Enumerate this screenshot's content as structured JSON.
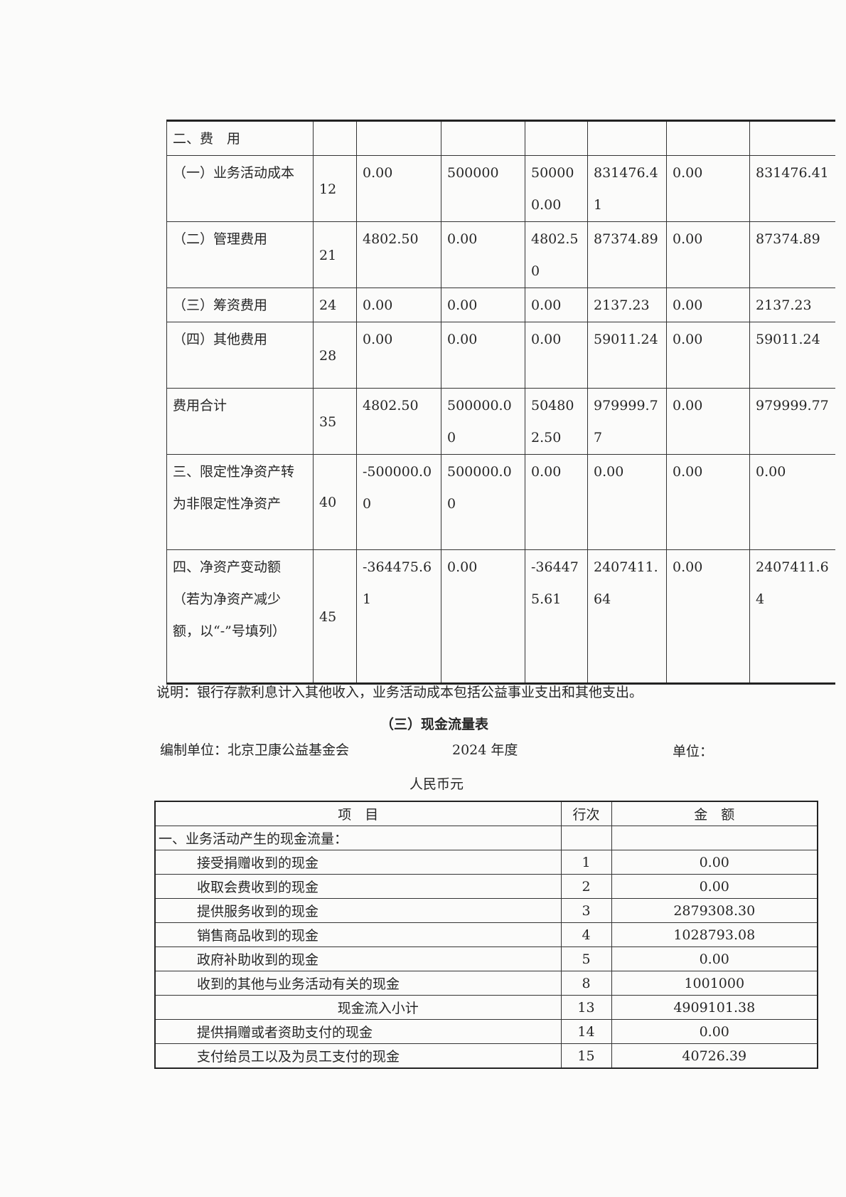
{
  "statement_of_activities": {
    "rows": [
      {
        "item": "二、费　用",
        "line": "",
        "cells": [
          "",
          "",
          "",
          "",
          "",
          ""
        ]
      },
      {
        "item": "（一）业务活动成本",
        "line": "12",
        "cells": [
          "0.00",
          "500000",
          "500000.00",
          "831476.41",
          "0.00",
          "831476.41"
        ]
      },
      {
        "item": "（二）管理费用",
        "line": "21",
        "cells": [
          "4802.50",
          "0.00",
          "4802.50",
          "87374.89",
          "0.00",
          "87374.89"
        ]
      },
      {
        "item": "（三）筹资费用",
        "line": "24",
        "cells": [
          "0.00",
          "0.00",
          "0.00",
          "2137.23",
          "0.00",
          "2137.23"
        ]
      },
      {
        "item": "（四）其他费用",
        "line": "28",
        "cells": [
          "0.00",
          "0.00",
          "0.00",
          "59011.24",
          "0.00",
          "59011.24"
        ]
      },
      {
        "item": "费用合计",
        "line": "35",
        "cells": [
          "4802.50",
          "500000.00",
          "504802.50",
          "979999.77",
          "0.00",
          "979999.77"
        ]
      },
      {
        "item": "三、限定性净资产转为非限定性净资产",
        "line": "40",
        "cells": [
          "-500000.00",
          "500000.00",
          "0.00",
          "0.00",
          "0.00",
          "0.00"
        ]
      },
      {
        "item": "四、净资产变动额（若为净资产减少额，以“-”号填列）",
        "line": "45",
        "cells": [
          "-364475.61",
          "0.00",
          "-364475.61",
          "2407411.64",
          "0.00",
          "2407411.64"
        ]
      }
    ]
  },
  "note": "说明：银行存款利息计入其他收入，业务活动成本包括公益事业支出和其他支出。",
  "cash_flow": {
    "title": "（三）现金流量表",
    "org": "编制单位：北京卫康公益基金会",
    "year": "2024 年度",
    "unit_label": "单位：",
    "unit_value": "人民币元",
    "headers": {
      "item": "项　目",
      "line": "行次",
      "amount": "金　额"
    },
    "section": "一、业务活动产生的现金流量：",
    "rows": [
      {
        "item": "接受捐赠收到的现金",
        "line": "1",
        "amount": "0.00"
      },
      {
        "item": "收取会费收到的现金",
        "line": "2",
        "amount": "0.00"
      },
      {
        "item": "提供服务收到的现金",
        "line": "3",
        "amount": "2879308.30"
      },
      {
        "item": "销售商品收到的现金",
        "line": "4",
        "amount": "1028793.08"
      },
      {
        "item": "政府补助收到的现金",
        "line": "5",
        "amount": "0.00"
      },
      {
        "item": "收到的其他与业务活动有关的现金",
        "line": "8",
        "amount": "1001000"
      },
      {
        "item": "现金流入小计",
        "line": "13",
        "amount": "4909101.38",
        "subtotal": true
      },
      {
        "item": "提供捐赠或者资助支付的现金",
        "line": "14",
        "amount": "0.00"
      },
      {
        "item": "支付给员工以及为员工支付的现金",
        "line": "15",
        "amount": "40726.39"
      }
    ]
  }
}
